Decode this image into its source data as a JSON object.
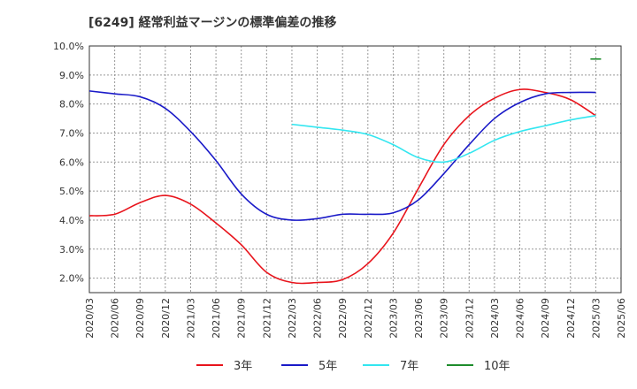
{
  "chart_data": {
    "type": "line",
    "title": "[6249]  経常利益マージンの標準偏差の推移",
    "xlabel": "",
    "ylabel": "",
    "ylim": [
      1.5,
      10.0
    ],
    "yticks": [
      2.0,
      3.0,
      4.0,
      5.0,
      6.0,
      7.0,
      8.0,
      9.0,
      10.0
    ],
    "ytick_labels": [
      "2.0%",
      "3.0%",
      "4.0%",
      "5.0%",
      "6.0%",
      "7.0%",
      "8.0%",
      "9.0%",
      "10.0%"
    ],
    "x_range": [
      "2020/03",
      "2025/06"
    ],
    "xtick_labels": [
      "2020/03",
      "2020/06",
      "2020/09",
      "2020/12",
      "2021/03",
      "2021/06",
      "2021/09",
      "2021/12",
      "2022/03",
      "2022/06",
      "2022/09",
      "2022/12",
      "2023/03",
      "2023/06",
      "2023/09",
      "2023/12",
      "2024/03",
      "2024/06",
      "2024/09",
      "2024/12",
      "2025/03",
      "2025/06"
    ],
    "grid": true,
    "legend_position": "bottom",
    "series": [
      {
        "name": "3年",
        "color": "#e8141c",
        "x": [
          "2020/03",
          "2020/06",
          "2020/09",
          "2020/12",
          "2021/03",
          "2021/06",
          "2021/09",
          "2021/12",
          "2022/03",
          "2022/06",
          "2022/09",
          "2022/12",
          "2023/03",
          "2023/06",
          "2023/09",
          "2023/12",
          "2024/03",
          "2024/06",
          "2024/09",
          "2024/12",
          "2025/03"
        ],
        "values": [
          4.15,
          4.2,
          4.6,
          4.85,
          4.55,
          3.9,
          3.15,
          2.2,
          1.85,
          1.85,
          1.95,
          2.5,
          3.55,
          5.1,
          6.6,
          7.6,
          8.2,
          8.5,
          8.4,
          8.15,
          7.6
        ]
      },
      {
        "name": "5年",
        "color": "#1a1ac8",
        "x": [
          "2020/03",
          "2020/06",
          "2020/09",
          "2020/12",
          "2021/03",
          "2021/06",
          "2021/09",
          "2021/12",
          "2022/03",
          "2022/06",
          "2022/09",
          "2022/12",
          "2023/03",
          "2023/06",
          "2023/09",
          "2023/12",
          "2024/03",
          "2024/06",
          "2024/09",
          "2024/12",
          "2025/03"
        ],
        "values": [
          8.45,
          8.35,
          8.25,
          7.85,
          7.05,
          6.05,
          4.9,
          4.2,
          4.0,
          4.05,
          4.2,
          4.2,
          4.25,
          4.7,
          5.6,
          6.6,
          7.5,
          8.05,
          8.35,
          8.4,
          8.4
        ]
      },
      {
        "name": "7年",
        "color": "#33e6f0",
        "x": [
          "2022/03",
          "2022/06",
          "2022/09",
          "2022/12",
          "2023/03",
          "2023/06",
          "2023/09",
          "2023/12",
          "2024/03",
          "2024/06",
          "2024/09",
          "2024/12",
          "2025/03"
        ],
        "values": [
          7.3,
          7.2,
          7.1,
          6.95,
          6.6,
          6.15,
          6.0,
          6.3,
          6.75,
          7.05,
          7.25,
          7.45,
          7.6
        ]
      },
      {
        "name": "10年",
        "color": "#1e8c2c",
        "x": [
          "2025/03"
        ],
        "values": [
          9.55
        ]
      }
    ]
  }
}
